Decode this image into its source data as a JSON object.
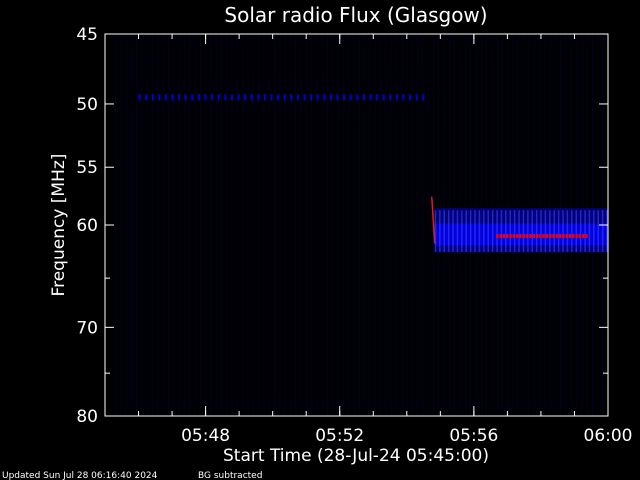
{
  "chart_data": {
    "type": "heatmap",
    "title": "Solar radio Flux (Glasgow)",
    "xlabel": "Start Time (28-Jul-24 05:45:00)",
    "ylabel": "Frequency [MHz]",
    "xlim": [
      "05:45",
      "06:00"
    ],
    "ylim": [
      45,
      80
    ],
    "y_scale": "log",
    "y_reversed": true,
    "x_ticks": [
      "05:48",
      "05:52",
      "05:56",
      "06:00"
    ],
    "y_ticks": [
      45,
      50,
      55,
      60,
      70,
      80
    ],
    "grid": false,
    "colors": {
      "background": "#000000",
      "noise": "#0000ff",
      "burst": "#ff0000",
      "axes": "#ffffff"
    },
    "features": [
      {
        "name": "",
        "time_start": "05:46",
        "time_end": "05:54:30",
        "freq_start": 49.5,
        "freq_end": 49.5,
        "intensity": "low"
      },
      {
        "name": "",
        "time_start": "05:54:50",
        "time_end": "06:00",
        "freq_start": 58.5,
        "freq_end": 62.5,
        "intensity": "high",
        "peak_freq": 61
      }
    ]
  },
  "footer": {
    "updated": "Updated Sun Jul 28 06:16:40 2024",
    "mode": "BG subtracted"
  }
}
